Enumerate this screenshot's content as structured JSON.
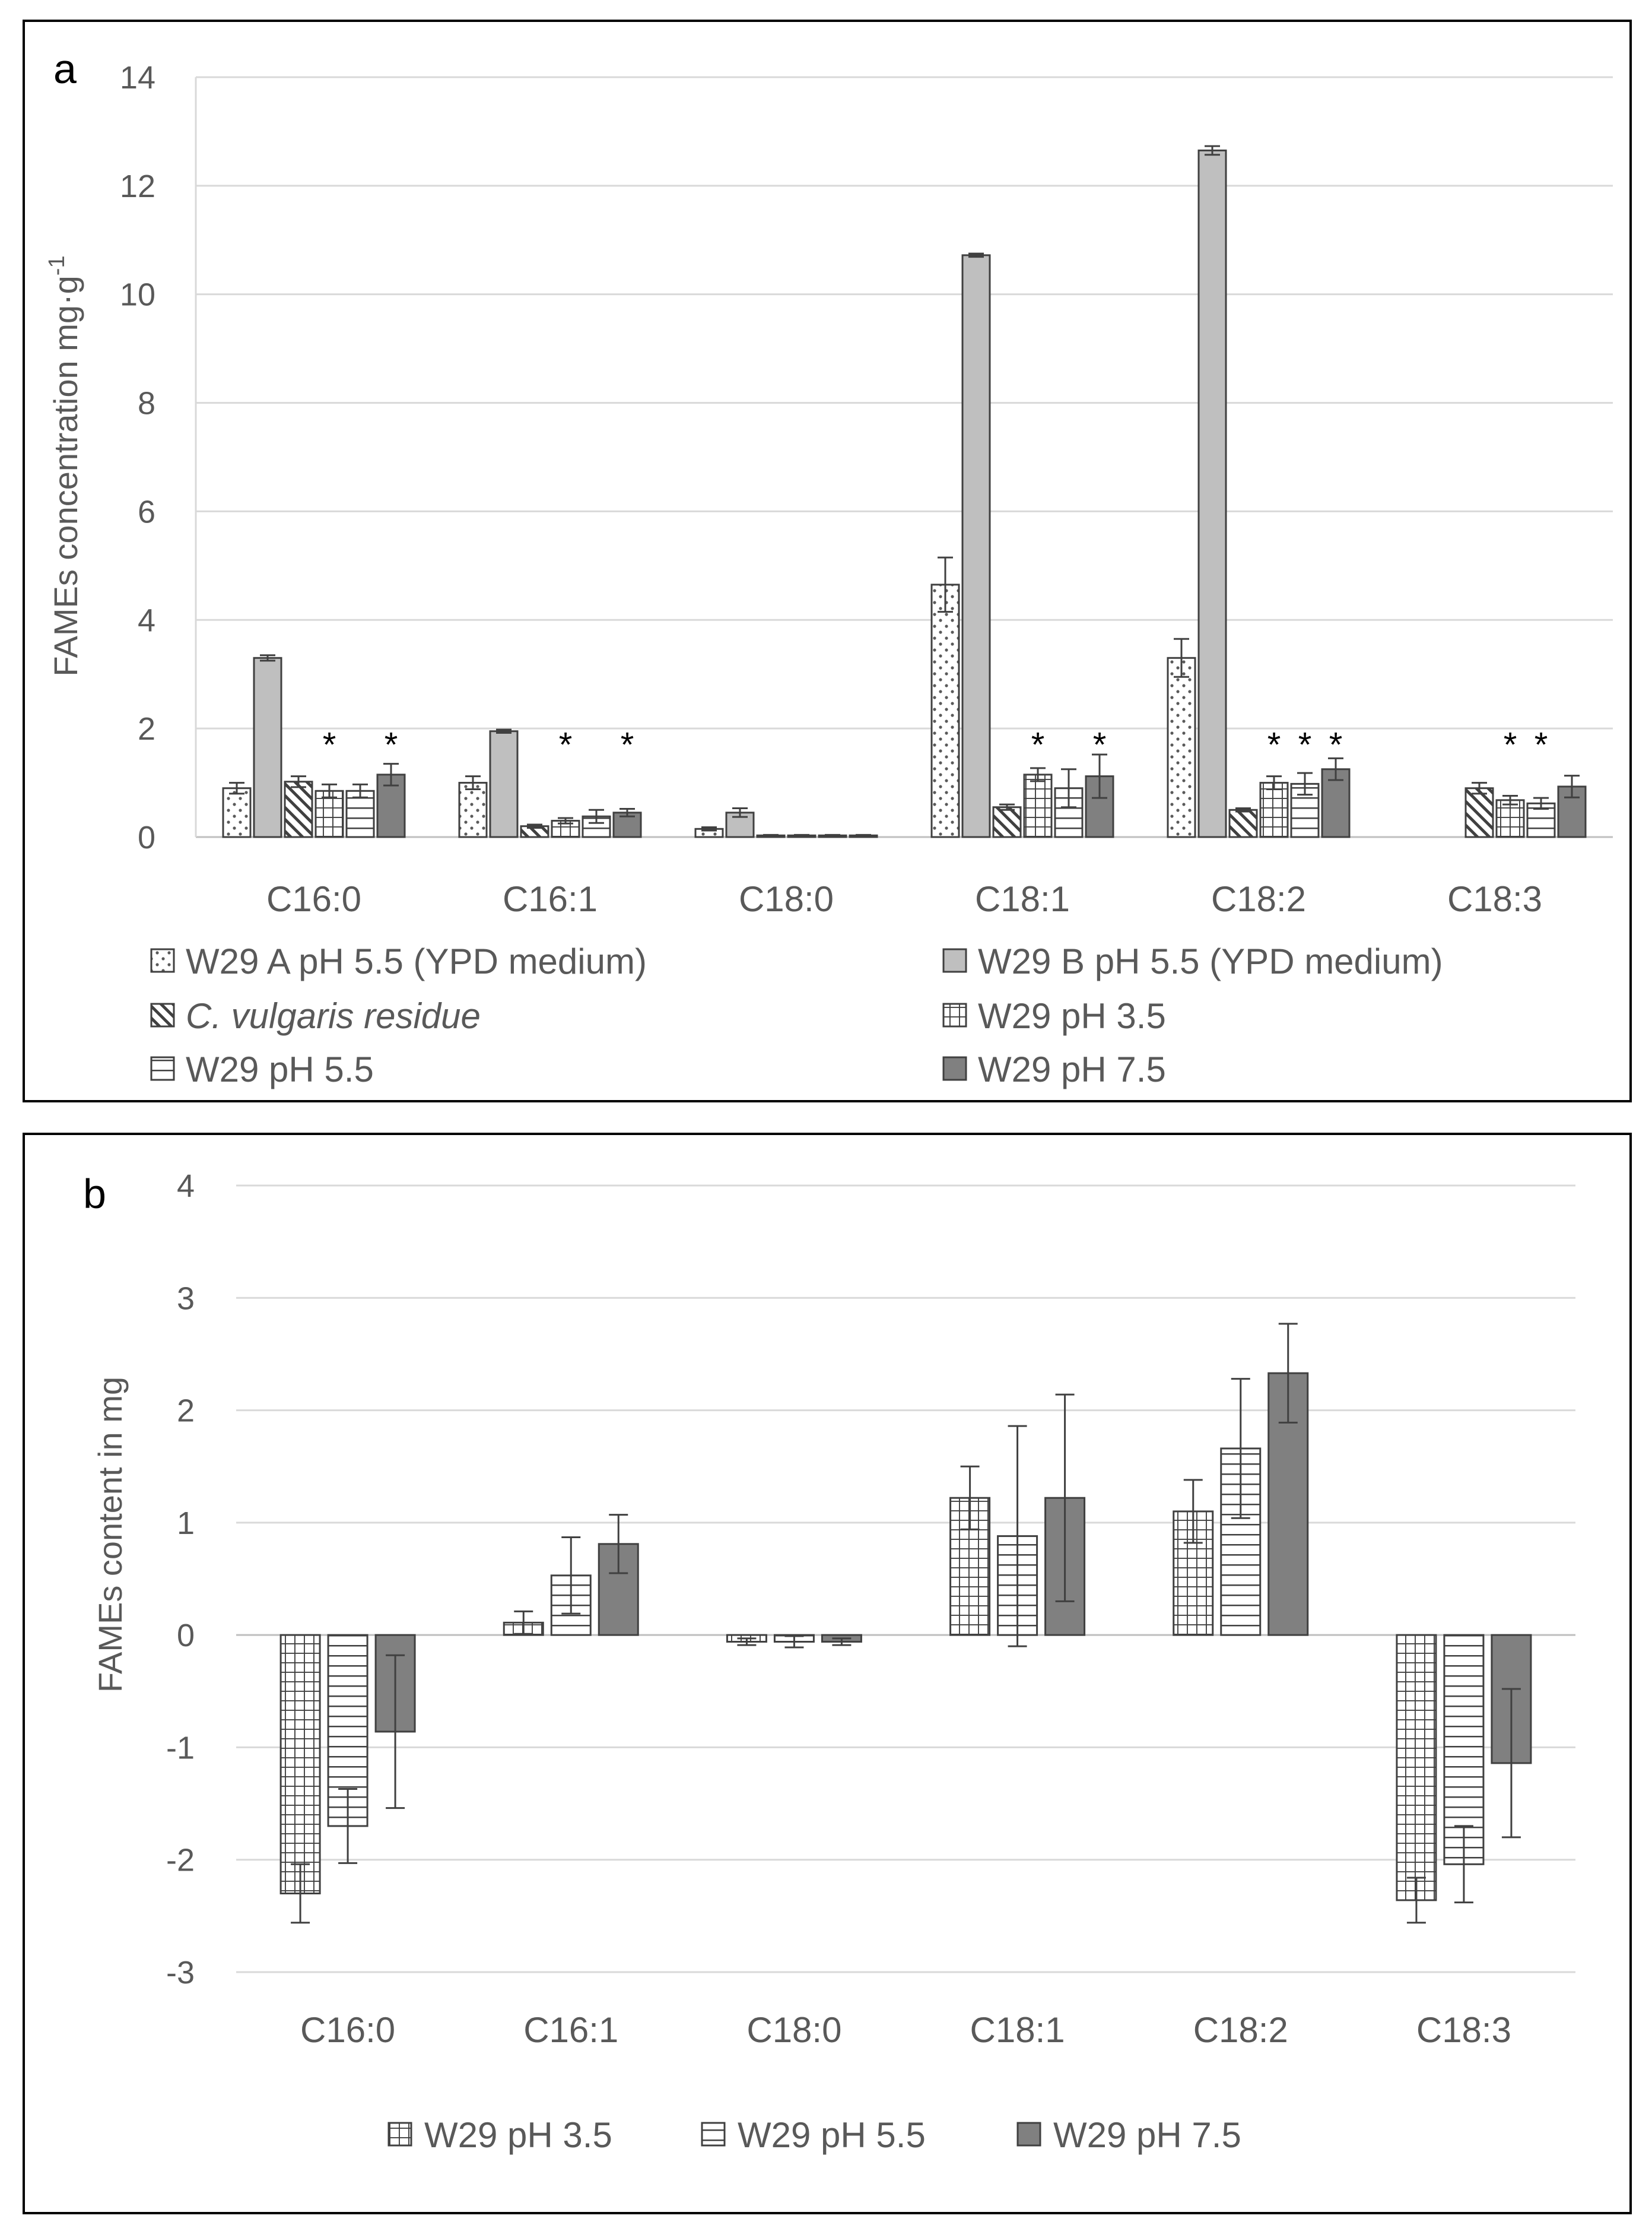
{
  "colors": {
    "dotted_fill": "#ffffff",
    "dotted_dots": "#5a5a5a",
    "light_gray": "#bfbfbf",
    "hatch": "#404040",
    "dark_gray": "#808080",
    "gridline": "#d9d9d9",
    "text": "#595959"
  },
  "chart_data": [
    {
      "panel_label": "a",
      "type": "bar",
      "ylabel_main": "FAMEs concentration mg·g",
      "ylabel_sup": "-1",
      "ylim": [
        0,
        14
      ],
      "yticks": [
        0,
        2,
        4,
        6,
        8,
        10,
        12,
        14
      ],
      "categories": [
        "C16:0",
        "C16:1",
        "C18:0",
        "C18:1",
        "C18:2",
        "C18:3"
      ],
      "series": [
        {
          "name": "W29 A pH 5.5 (YPD medium)",
          "pattern": "dots",
          "italic": false,
          "values": [
            0.9,
            1.0,
            0.15,
            4.65,
            3.3,
            0.0
          ],
          "errors": [
            0.1,
            0.12,
            0.03,
            0.5,
            0.35,
            0.0
          ]
        },
        {
          "name": "W29 B pH 5.5 (YPD medium)",
          "pattern": "light",
          "italic": false,
          "values": [
            3.3,
            1.95,
            0.45,
            10.72,
            12.65,
            0.0
          ],
          "errors": [
            0.05,
            0.03,
            0.08,
            0.03,
            0.08,
            0.0
          ]
        },
        {
          "name": "C. vulgaris residue",
          "pattern": "diag",
          "italic": true,
          "values": [
            1.02,
            0.2,
            0.03,
            0.55,
            0.5,
            0.9
          ],
          "errors": [
            0.1,
            0.03,
            0.01,
            0.05,
            0.03,
            0.1
          ]
        },
        {
          "name": "W29 pH 3.5",
          "pattern": "grid",
          "italic": false,
          "values": [
            0.85,
            0.3,
            0.03,
            1.15,
            1.0,
            0.68
          ],
          "errors": [
            0.12,
            0.05,
            0.01,
            0.12,
            0.12,
            0.08
          ]
        },
        {
          "name": "W29 pH 5.5",
          "pattern": "hlines",
          "italic": false,
          "values": [
            0.85,
            0.38,
            0.03,
            0.9,
            0.98,
            0.62
          ],
          "errors": [
            0.12,
            0.12,
            0.01,
            0.35,
            0.2,
            0.1
          ]
        },
        {
          "name": "W29 pH 7.5",
          "pattern": "dark",
          "italic": false,
          "values": [
            1.15,
            0.45,
            0.03,
            1.12,
            1.25,
            0.93
          ],
          "errors": [
            0.2,
            0.07,
            0.01,
            0.4,
            0.2,
            0.2
          ]
        }
      ],
      "significance": [
        {
          "category": "C16:0",
          "series": 3,
          "mark": "*"
        },
        {
          "category": "C16:0",
          "series": 5,
          "mark": "*"
        },
        {
          "category": "C16:1",
          "series": 3,
          "mark": "*"
        },
        {
          "category": "C16:1",
          "series": 5,
          "mark": "*"
        },
        {
          "category": "C18:1",
          "series": 3,
          "mark": "*"
        },
        {
          "category": "C18:1",
          "series": 5,
          "mark": "*"
        },
        {
          "category": "C18:2",
          "series": 3,
          "mark": "*"
        },
        {
          "category": "C18:2",
          "series": 4,
          "mark": "*"
        },
        {
          "category": "C18:2",
          "series": 5,
          "mark": "*"
        },
        {
          "category": "C18:3",
          "series": 3,
          "mark": "*"
        },
        {
          "category": "C18:3",
          "series": 4,
          "mark": "*"
        }
      ],
      "legend_position": "bottom"
    },
    {
      "panel_label": "b",
      "type": "bar",
      "ylabel_main": "FAMEs content in mg",
      "ylabel_sup": "",
      "ylim": [
        -3,
        4
      ],
      "yticks": [
        -3,
        -2,
        -1,
        0,
        1,
        2,
        3,
        4
      ],
      "categories": [
        "C16:0",
        "C16:1",
        "C18:0",
        "C18:1",
        "C18:2",
        "C18:3"
      ],
      "series": [
        {
          "name": "W29 pH 3.5",
          "pattern": "grid",
          "italic": false,
          "values": [
            -2.3,
            0.11,
            -0.06,
            1.22,
            1.1,
            -2.36
          ],
          "errors": [
            0.26,
            0.1,
            0.03,
            0.28,
            0.28,
            0.2
          ]
        },
        {
          "name": "W29 pH 5.5",
          "pattern": "hlines",
          "italic": false,
          "values": [
            -1.7,
            0.53,
            -0.06,
            0.88,
            1.66,
            -2.04
          ],
          "errors": [
            0.33,
            0.34,
            0.05,
            0.98,
            0.62,
            0.34
          ]
        },
        {
          "name": "W29 pH 7.5",
          "pattern": "dark",
          "italic": false,
          "values": [
            -0.86,
            0.81,
            -0.06,
            1.22,
            2.33,
            -1.14
          ],
          "errors": [
            0.68,
            0.26,
            0.03,
            0.92,
            0.44,
            0.66
          ]
        }
      ],
      "significance": [],
      "legend_position": "bottom"
    }
  ]
}
